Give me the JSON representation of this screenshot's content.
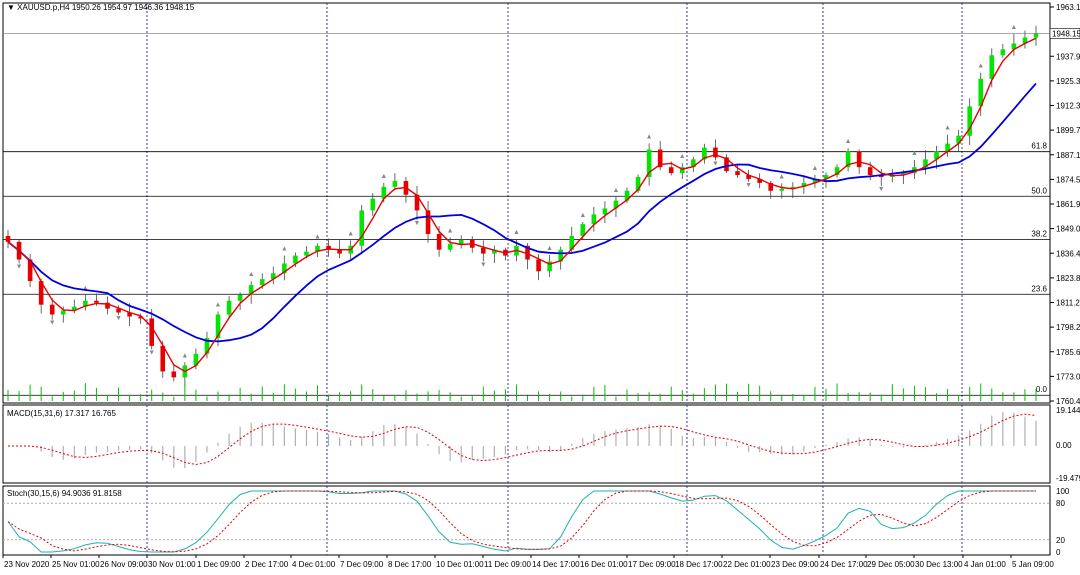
{
  "header": {
    "symbol": "XAUUSD.p,H4",
    "ohlc": "1950.26 1954.97 1946.36 1948.15",
    "current_price": "1948.15"
  },
  "price_axis": {
    "labels": [
      "1963.10",
      "1950.55",
      "1937.90",
      "1925.30",
      "1912.35",
      "1899.75",
      "1887.15",
      "1874.55",
      "1861.95",
      "1849.00",
      "1836.40",
      "1823.80",
      "1811.20",
      "1798.25",
      "1785.65",
      "1773.05",
      "1760.45"
    ]
  },
  "fibonacci": [
    {
      "label": "61.8",
      "price": 1887.9
    },
    {
      "label": "50.0",
      "price": 1865.2
    },
    {
      "label": "38.2",
      "price": 1843.2
    },
    {
      "label": "23.6",
      "price": 1815.3
    },
    {
      "label": "0.0",
      "price": 1763.9
    }
  ],
  "macd": {
    "label": "MACD(15,31,6) 17.317 16.765",
    "axis_labels": [
      "19.144",
      "0.00",
      "-19.479"
    ]
  },
  "stoch": {
    "label": "Stoch(30,15,6) 94.9036 91.8158",
    "axis_labels": [
      "100",
      "80",
      "20",
      "0"
    ]
  },
  "time_axis": {
    "labels": [
      "23 Nov 2020",
      "25 Nov 01:00",
      "26 Nov 09:00",
      "30 Nov 01:00",
      "1 Dec 09:00",
      "2 Dec 17:00",
      "4 Dec 01:00",
      "7 Dec 09:00",
      "8 Dec 17:00",
      "10 Dec 01:00",
      "11 Dec 09:00",
      "14 Dec 17:00",
      "16 Dec 01:00",
      "17 Dec 09:00",
      "18 Dec 17:00",
      "22 Dec 01:00",
      "23 Dec 09:00",
      "24 Dec 17:00",
      "29 Dec 05:00",
      "30 Dec 13:00",
      "4 Jan 01:00",
      "5 Jan 09:00"
    ]
  },
  "colors": {
    "bull": "#00e600",
    "bear": "#e60000",
    "ma_fast": "#e60000",
    "ma_slow": "#0000dd",
    "grid_vertical": "#3a3aa0",
    "fib_line": "#000000",
    "stoch_main": "#20b2aa",
    "stoch_signal": "#e60000"
  },
  "chart_data": {
    "type": "candlestick",
    "xlabel": "",
    "ylabel": "",
    "ylim": [
      1760.45,
      1963.1
    ],
    "close_series_approx": [
      1842,
      1833,
      1822,
      1810,
      1805,
      1807,
      1809,
      1812,
      1811,
      1808,
      1806,
      1804,
      1803,
      1789,
      1776,
      1773,
      1779,
      1785,
      1793,
      1805,
      1812,
      1815,
      1820,
      1823,
      1826,
      1831,
      1835,
      1837,
      1840,
      1838,
      1836,
      1840,
      1858,
      1864,
      1870,
      1873,
      1866,
      1858,
      1846,
      1838,
      1841,
      1843,
      1839,
      1836,
      1838,
      1835,
      1840,
      1833,
      1827,
      1832,
      1838,
      1845,
      1851,
      1856,
      1859,
      1863,
      1868,
      1875,
      1889,
      1880,
      1877,
      1880,
      1884,
      1890,
      1885,
      1878,
      1876,
      1874,
      1872,
      1868,
      1869,
      1870,
      1872,
      1874,
      1876,
      1880,
      1888,
      1880,
      1876,
      1875,
      1876,
      1877,
      1880,
      1884,
      1888,
      1892,
      1896,
      1911,
      1925,
      1937,
      1940,
      1943,
      1946,
      1948
    ]
  }
}
